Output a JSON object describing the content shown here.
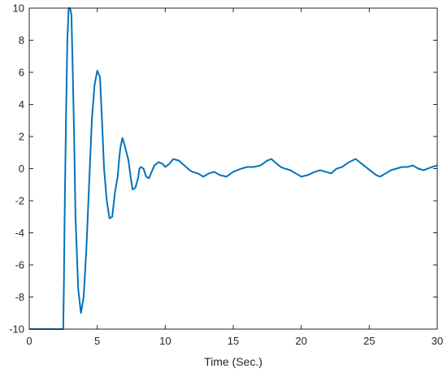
{
  "chart_data": {
    "type": "line",
    "title": "",
    "xlabel": "Time (Sec.)",
    "ylabel": "",
    "xlim": [
      0,
      30
    ],
    "ylim": [
      -10,
      10
    ],
    "xticks": [
      "0",
      "5",
      "10",
      "15",
      "20",
      "25",
      "30"
    ],
    "yticks": [
      "10",
      "8",
      "6",
      "4",
      "2",
      "0",
      "-2",
      "-4",
      "-6",
      "-8",
      "-10"
    ],
    "grid": false,
    "series": [
      {
        "color": "#0072BD",
        "x": [
          0,
          2.5,
          2.55,
          2.6,
          2.7,
          2.8,
          2.9,
          3.0,
          3.1,
          3.2,
          3.3,
          3.4,
          3.6,
          3.8,
          4.0,
          4.2,
          4.4,
          4.6,
          4.8,
          5.0,
          5.2,
          5.35,
          5.5,
          5.7,
          5.9,
          6.1,
          6.3,
          6.5,
          6.6,
          6.7,
          6.85,
          7.0,
          7.15,
          7.3,
          7.45,
          7.6,
          7.8,
          8.0,
          8.1,
          8.2,
          8.4,
          8.6,
          8.8,
          9.0,
          9.2,
          9.5,
          9.8,
          10.0,
          10.3,
          10.6,
          11.0,
          11.4,
          11.8,
          12.0,
          12.4,
          12.8,
          13.2,
          13.6,
          14.0,
          14.5,
          15.0,
          15.3,
          15.6,
          16.0,
          16.5,
          17.0,
          17.5,
          17.8,
          18.2,
          18.5,
          18.8,
          19.2,
          19.6,
          20.0,
          20.5,
          21.0,
          21.4,
          21.8,
          22.2,
          22.6,
          23.0,
          23.5,
          24.0,
          24.3,
          24.6,
          24.9,
          25.2,
          25.5,
          25.8,
          26.2,
          26.6,
          27.0,
          27.4,
          27.8,
          28.2,
          28.6,
          29.0,
          29.3,
          29.6,
          30.0
        ],
        "y": [
          -10,
          -10,
          -7,
          -3,
          3,
          8,
          10,
          10,
          9.6,
          6,
          2,
          -3,
          -7.5,
          -9.0,
          -8,
          -5,
          -1,
          3,
          5.2,
          6.1,
          5.7,
          3,
          0,
          -2,
          -3.1,
          -3.0,
          -1.5,
          -0.5,
          0.5,
          1.3,
          1.9,
          1.5,
          1.0,
          0.5,
          -0.5,
          -1.3,
          -1.2,
          -0.6,
          0.0,
          0.1,
          0.0,
          -0.5,
          -0.6,
          -0.2,
          0.2,
          0.4,
          0.3,
          0.1,
          0.3,
          0.6,
          0.5,
          0.2,
          -0.1,
          -0.2,
          -0.3,
          -0.5,
          -0.3,
          -0.2,
          -0.4,
          -0.5,
          -0.2,
          -0.1,
          0.0,
          0.1,
          0.1,
          0.2,
          0.5,
          0.6,
          0.3,
          0.1,
          0.0,
          -0.1,
          -0.3,
          -0.5,
          -0.4,
          -0.2,
          -0.1,
          -0.2,
          -0.3,
          0.0,
          0.1,
          0.4,
          0.6,
          0.4,
          0.2,
          0.0,
          -0.2,
          -0.4,
          -0.5,
          -0.3,
          -0.1,
          0.0,
          0.1,
          0.1,
          0.2,
          0.0,
          -0.1,
          0.0,
          0.1,
          0.2
        ]
      }
    ]
  }
}
